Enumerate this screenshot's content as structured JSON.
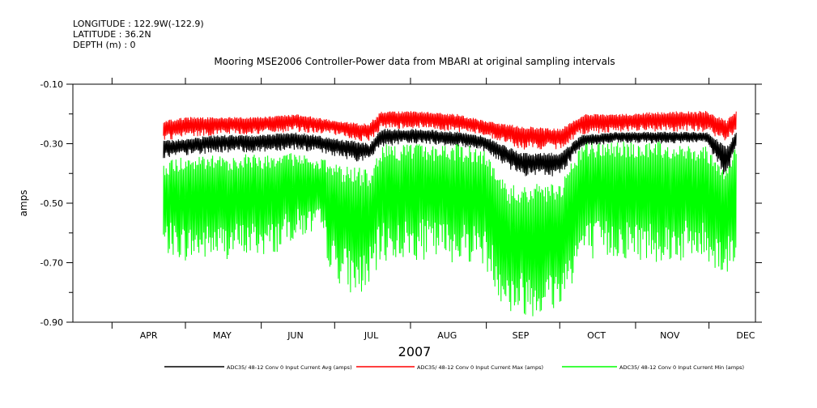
{
  "header": {
    "longitude": "LONGITUDE : 122.9W(-122.9)",
    "latitude": "LATITUDE : 36.2N",
    "depth": "DEPTH (m) : 0"
  },
  "chart_data": {
    "type": "line",
    "title": "Mooring MSE2006 Controller-Power data from MBARI at original sampling intervals",
    "xlabel": "2007",
    "ylabel": "amps",
    "x_range": [
      "2007-03-16",
      "2007-12-20"
    ],
    "ylim": [
      -0.9,
      -0.1
    ],
    "y_ticks": [
      -0.9,
      -0.7,
      -0.5,
      -0.3,
      -0.1
    ],
    "y_tick_labels": [
      "-0.90",
      "-0.70",
      "-0.50",
      "-0.30",
      "-0.10"
    ],
    "x_tick_labels": [
      "APR",
      "MAY",
      "JUN",
      "JUL",
      "AUG",
      "SEP",
      "OCT",
      "NOV",
      "DEC"
    ],
    "grid": false,
    "legend": "bottom",
    "series": [
      {
        "name": "ADC35/ 48-12 Conv 0 Input Current Avg (amps)",
        "color": "#000000",
        "low": [
          [
            "2007-04-22",
            -0.35
          ],
          [
            "2007-05-02",
            -0.34
          ],
          [
            "2007-05-15",
            -0.33
          ],
          [
            "2007-05-30",
            -0.33
          ],
          [
            "2007-06-15",
            -0.32
          ],
          [
            "2007-06-30",
            -0.34
          ],
          [
            "2007-07-10",
            -0.36
          ],
          [
            "2007-07-15",
            -0.36
          ],
          [
            "2007-07-20",
            -0.31
          ],
          [
            "2007-08-05",
            -0.3
          ],
          [
            "2007-08-20",
            -0.31
          ],
          [
            "2007-08-30",
            -0.32
          ],
          [
            "2007-09-15",
            -0.41
          ],
          [
            "2007-10-01",
            -0.41
          ],
          [
            "2007-10-10",
            -0.31
          ],
          [
            "2007-10-25",
            -0.3
          ],
          [
            "2007-11-15",
            -0.3
          ],
          [
            "2007-11-30",
            -0.3
          ],
          [
            "2007-12-08",
            -0.42
          ],
          [
            "2007-12-12",
            -0.32
          ]
        ],
        "high": [
          [
            "2007-04-22",
            -0.29
          ],
          [
            "2007-05-02",
            -0.28
          ],
          [
            "2007-05-15",
            -0.27
          ],
          [
            "2007-05-30",
            -0.27
          ],
          [
            "2007-06-15",
            -0.26
          ],
          [
            "2007-06-30",
            -0.28
          ],
          [
            "2007-07-10",
            -0.29
          ],
          [
            "2007-07-15",
            -0.3
          ],
          [
            "2007-07-20",
            -0.25
          ],
          [
            "2007-08-05",
            -0.25
          ],
          [
            "2007-08-20",
            -0.26
          ],
          [
            "2007-08-30",
            -0.27
          ],
          [
            "2007-09-15",
            -0.33
          ],
          [
            "2007-10-01",
            -0.33
          ],
          [
            "2007-10-10",
            -0.27
          ],
          [
            "2007-10-25",
            -0.26
          ],
          [
            "2007-11-15",
            -0.26
          ],
          [
            "2007-11-30",
            -0.26
          ],
          [
            "2007-12-08",
            -0.31
          ],
          [
            "2007-12-12",
            -0.26
          ]
        ]
      },
      {
        "name": "ADC35/ 48-12 Conv 0 Input Current Max (amps)",
        "color": "#ff0000",
        "low": [
          [
            "2007-04-22",
            -0.29
          ],
          [
            "2007-05-02",
            -0.28
          ],
          [
            "2007-05-15",
            -0.27
          ],
          [
            "2007-05-30",
            -0.27
          ],
          [
            "2007-06-15",
            -0.26
          ],
          [
            "2007-06-30",
            -0.27
          ],
          [
            "2007-07-10",
            -0.29
          ],
          [
            "2007-07-15",
            -0.3
          ],
          [
            "2007-07-20",
            -0.25
          ],
          [
            "2007-08-05",
            -0.25
          ],
          [
            "2007-08-20",
            -0.26
          ],
          [
            "2007-08-30",
            -0.27
          ],
          [
            "2007-09-15",
            -0.32
          ],
          [
            "2007-10-01",
            -0.32
          ],
          [
            "2007-10-10",
            -0.27
          ],
          [
            "2007-10-25",
            -0.26
          ],
          [
            "2007-11-15",
            -0.26
          ],
          [
            "2007-11-30",
            -0.26
          ],
          [
            "2007-12-08",
            -0.3
          ],
          [
            "2007-12-12",
            -0.26
          ]
        ],
        "high": [
          [
            "2007-04-22",
            -0.22
          ],
          [
            "2007-05-02",
            -0.21
          ],
          [
            "2007-05-15",
            -0.21
          ],
          [
            "2007-05-30",
            -0.21
          ],
          [
            "2007-06-15",
            -0.2
          ],
          [
            "2007-06-30",
            -0.22
          ],
          [
            "2007-07-10",
            -0.23
          ],
          [
            "2007-07-15",
            -0.23
          ],
          [
            "2007-07-20",
            -0.19
          ],
          [
            "2007-08-05",
            -0.19
          ],
          [
            "2007-08-20",
            -0.2
          ],
          [
            "2007-08-30",
            -0.22
          ],
          [
            "2007-09-15",
            -0.24
          ],
          [
            "2007-10-01",
            -0.25
          ],
          [
            "2007-10-10",
            -0.2
          ],
          [
            "2007-10-25",
            -0.2
          ],
          [
            "2007-11-15",
            -0.19
          ],
          [
            "2007-11-30",
            -0.19
          ],
          [
            "2007-12-08",
            -0.22
          ],
          [
            "2007-12-12",
            -0.19
          ]
        ]
      },
      {
        "name": "ADC35/ 48-12 Conv 0 Input Current Min (amps)",
        "color": "#00ff00",
        "low": [
          [
            "2007-04-22",
            -0.67
          ],
          [
            "2007-05-02",
            -0.7
          ],
          [
            "2007-05-15",
            -0.69
          ],
          [
            "2007-05-30",
            -0.68
          ],
          [
            "2007-06-05",
            -0.68
          ],
          [
            "2007-06-15",
            -0.62
          ],
          [
            "2007-06-25",
            -0.6
          ],
          [
            "2007-06-30",
            -0.75
          ],
          [
            "2007-07-10",
            -0.82
          ],
          [
            "2007-07-15",
            -0.8
          ],
          [
            "2007-07-20",
            -0.7
          ],
          [
            "2007-08-05",
            -0.69
          ],
          [
            "2007-08-20",
            -0.7
          ],
          [
            "2007-08-30",
            -0.7
          ],
          [
            "2007-09-10",
            -0.88
          ],
          [
            "2007-09-25",
            -0.88
          ],
          [
            "2007-10-01",
            -0.86
          ],
          [
            "2007-10-10",
            -0.7
          ],
          [
            "2007-10-25",
            -0.69
          ],
          [
            "2007-11-15",
            -0.7
          ],
          [
            "2007-11-30",
            -0.7
          ],
          [
            "2007-12-08",
            -0.75
          ],
          [
            "2007-12-12",
            -0.7
          ]
        ],
        "high": [
          [
            "2007-04-22",
            -0.36
          ],
          [
            "2007-05-02",
            -0.34
          ],
          [
            "2007-05-15",
            -0.34
          ],
          [
            "2007-05-30",
            -0.33
          ],
          [
            "2007-06-05",
            -0.34
          ],
          [
            "2007-06-15",
            -0.33
          ],
          [
            "2007-06-25",
            -0.35
          ],
          [
            "2007-06-30",
            -0.36
          ],
          [
            "2007-07-10",
            -0.38
          ],
          [
            "2007-07-15",
            -0.38
          ],
          [
            "2007-07-20",
            -0.3
          ],
          [
            "2007-08-05",
            -0.3
          ],
          [
            "2007-08-20",
            -0.3
          ],
          [
            "2007-08-30",
            -0.31
          ],
          [
            "2007-09-10",
            -0.44
          ],
          [
            "2007-09-25",
            -0.43
          ],
          [
            "2007-10-01",
            -0.44
          ],
          [
            "2007-10-10",
            -0.29
          ],
          [
            "2007-10-25",
            -0.29
          ],
          [
            "2007-11-15",
            -0.29
          ],
          [
            "2007-11-30",
            -0.3
          ],
          [
            "2007-12-08",
            -0.38
          ],
          [
            "2007-12-12",
            -0.3
          ]
        ]
      }
    ]
  }
}
